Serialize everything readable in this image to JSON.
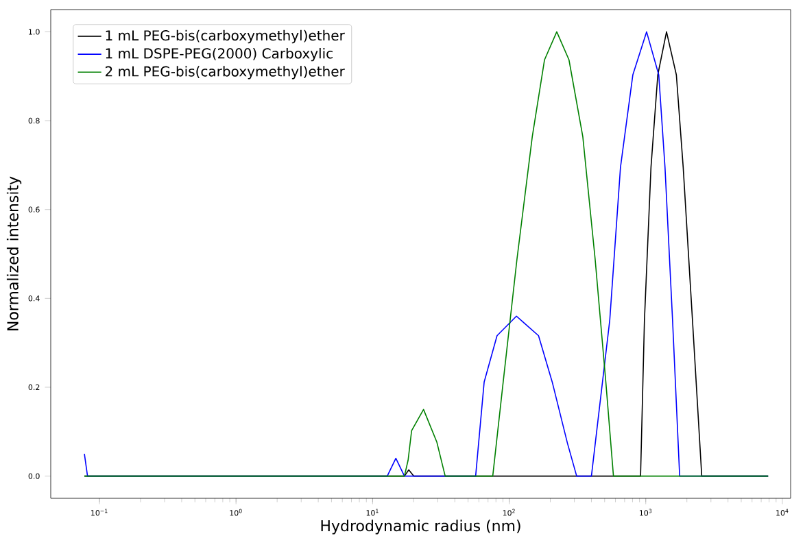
{
  "chart_data": {
    "type": "line",
    "xlabel": "Hydrodynamic radius (nm)",
    "ylabel": "Normalized intensity",
    "log": "x",
    "xlim": [
      0.044,
      11500
    ],
    "ylim": [
      -0.05,
      1.05
    ],
    "xticks": [
      {
        "value": 0.1,
        "label": "10$^{−1}$"
      },
      {
        "value": 1,
        "label": "10$^{0}$"
      },
      {
        "value": 10,
        "label": "10$^{1}$"
      },
      {
        "value": 100,
        "label": "10$^{2}$"
      },
      {
        "value": 1000,
        "label": "10$^{3}$"
      },
      {
        "value": 10000,
        "label": "10$^{4}$"
      }
    ],
    "yticks": [
      {
        "value": 0,
        "label": "0.0"
      },
      {
        "value": 0.2,
        "label": "0.2"
      },
      {
        "value": 0.4,
        "label": "0.4"
      },
      {
        "value": 0.6,
        "label": "0.6"
      },
      {
        "value": 0.8,
        "label": "0.8"
      },
      {
        "value": 1,
        "label": "1.0"
      }
    ],
    "legend": "top left",
    "line_style": "solid",
    "series": [
      {
        "name": "1 mL PEG-bis(carboxymethyl)ether",
        "color": "#000000",
        "x": [
          0.0776,
          17.1,
          18.4,
          20.0,
          916,
          978,
          1092,
          1225,
          1419,
          1675,
          1880,
          2198,
          2570,
          7870
        ],
        "values": [
          0,
          0,
          0.014,
          0,
          0,
          0.351,
          0.695,
          0.903,
          1.0,
          0.903,
          0.695,
          0.351,
          0,
          0
        ]
      },
      {
        "name": "1 mL DSPE-PEG(2000) Carboxylic",
        "color": "#0000ff",
        "x": [
          0.0776,
          0.0818,
          12.8,
          14.8,
          17.1,
          56.8,
          65.6,
          81.5,
          113,
          164,
          206.5,
          267,
          312,
          400,
          545,
          653,
          804,
          1014,
          1245,
          1383,
          1571,
          1771,
          7870
        ],
        "values": [
          0.05,
          0,
          0,
          0.04,
          0,
          0,
          0.212,
          0.316,
          0.36,
          0.316,
          0.212,
          0.074,
          0,
          0,
          0.351,
          0.695,
          0.903,
          1.0,
          0.903,
          0.695,
          0.351,
          0,
          0
        ]
      },
      {
        "name": "2 mL PEG-bis(carboxymethyl)ether",
        "color": "#008000",
        "x": [
          0.0776,
          17.1,
          18.2,
          19.3,
          23.6,
          29.5,
          34.0,
          75.8,
          90.4,
          114,
          147.6,
          181.5,
          223,
          274,
          346,
          426,
          510,
          580,
          7870
        ],
        "values": [
          0,
          0,
          0.036,
          0.102,
          0.15,
          0.077,
          0,
          0,
          0.212,
          0.488,
          0.764,
          0.937,
          1.0,
          0.937,
          0.764,
          0.488,
          0.212,
          0,
          0
        ]
      }
    ]
  }
}
